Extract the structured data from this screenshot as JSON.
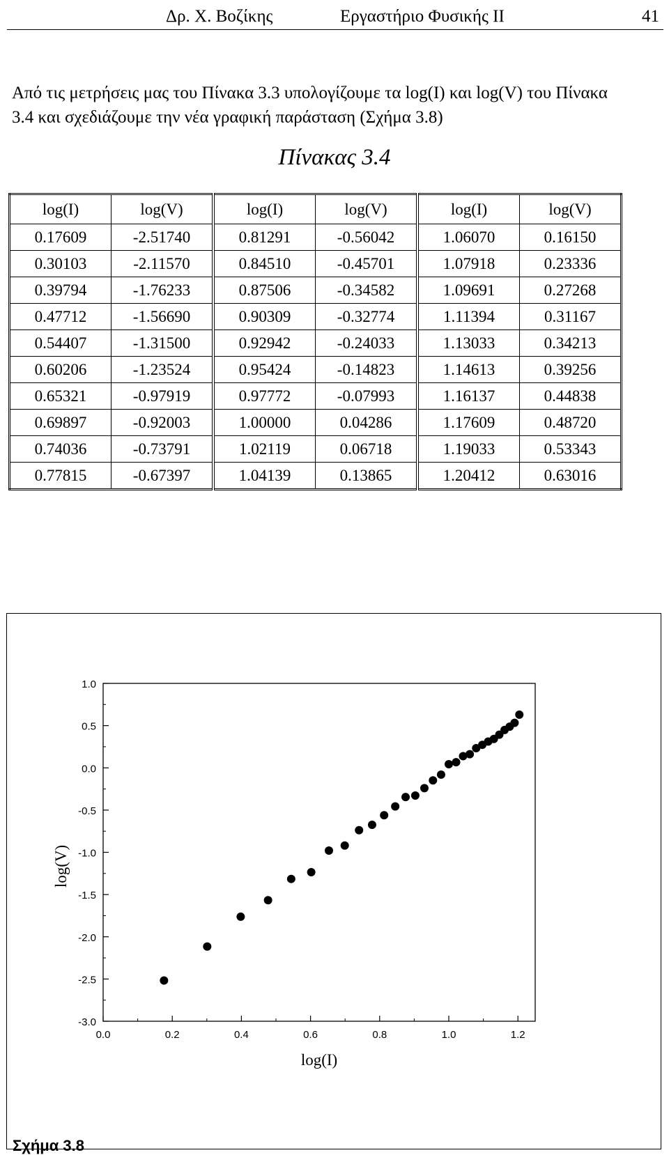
{
  "header": {
    "author": "Δρ. Χ. Βοζίκης",
    "course": "Εργαστήριο Φυσικής ΙΙ",
    "page": "41"
  },
  "intro": {
    "line1": "Από τις μετρήσεις μας του Πίνακα 3.3 υπολογίζουμε τα log(I) και log(V) του Πίνακα",
    "line2": "3.4 και σχεδιάζουμε την νέα γραφική παράσταση (Σχήμα 3.8)"
  },
  "table": {
    "title": "Πίνακας 3.4",
    "headers": [
      "log(I)",
      "log(V)",
      "log(I)",
      "log(V)",
      "log(I)",
      "log(V)"
    ],
    "rows": [
      [
        "0.17609",
        "-2.51740",
        "0.81291",
        "-0.56042",
        "1.06070",
        "0.16150"
      ],
      [
        "0.30103",
        "-2.11570",
        "0.84510",
        "-0.45701",
        "1.07918",
        "0.23336"
      ],
      [
        "0.39794",
        "-1.76233",
        "0.87506",
        "-0.34582",
        "1.09691",
        "0.27268"
      ],
      [
        "0.47712",
        "-1.56690",
        "0.90309",
        "-0.32774",
        "1.11394",
        "0.31167"
      ],
      [
        "0.54407",
        "-1.31500",
        "0.92942",
        "-0.24033",
        "1.13033",
        "0.34213"
      ],
      [
        "0.60206",
        "-1.23524",
        "0.95424",
        "-0.14823",
        "1.14613",
        "0.39256"
      ],
      [
        "0.65321",
        "-0.97919",
        "0.97772",
        "-0.07993",
        "1.16137",
        "0.44838"
      ],
      [
        "0.69897",
        "-0.92003",
        "1.00000",
        "0.04286",
        "1.17609",
        "0.48720"
      ],
      [
        "0.74036",
        "-0.73791",
        "1.02119",
        "0.06718",
        "1.19033",
        "0.53343"
      ],
      [
        "0.77815",
        "-0.67397",
        "1.04139",
        "0.13865",
        "1.20412",
        "0.63016"
      ]
    ]
  },
  "figure_label": "Σχήμα 3.8",
  "chart_data": {
    "type": "scatter",
    "xlabel": "log(I)",
    "ylabel": "log(V)",
    "xlim": [
      0.0,
      1.25
    ],
    "ylim": [
      -3.0,
      1.0
    ],
    "xticks": [
      "0.0",
      "0.2",
      "0.4",
      "0.6",
      "0.8",
      "1.0",
      "1.2"
    ],
    "yticks": [
      "1.0",
      "0.5",
      "0.0",
      "-0.5",
      "-1.0",
      "-1.5",
      "-2.0",
      "-2.5",
      "-3.0"
    ],
    "x": [
      0.17609,
      0.30103,
      0.39794,
      0.47712,
      0.54407,
      0.60206,
      0.65321,
      0.69897,
      0.74036,
      0.77815,
      0.81291,
      0.8451,
      0.87506,
      0.90309,
      0.92942,
      0.95424,
      0.97772,
      1.0,
      1.02119,
      1.04139,
      1.0607,
      1.07918,
      1.09691,
      1.11394,
      1.13033,
      1.14613,
      1.16137,
      1.17609,
      1.19033,
      1.20412
    ],
    "y": [
      -2.5174,
      -2.1157,
      -1.76233,
      -1.5669,
      -1.315,
      -1.23524,
      -0.97919,
      -0.92003,
      -0.73791,
      -0.67397,
      -0.56042,
      -0.45701,
      -0.34582,
      -0.32774,
      -0.24033,
      -0.14823,
      -0.07993,
      0.04286,
      0.06718,
      0.13865,
      0.1615,
      0.23336,
      0.27268,
      0.31167,
      0.34213,
      0.39256,
      0.44838,
      0.4872,
      0.53343,
      0.63016
    ],
    "marker_color": "#000000",
    "grid": false
  }
}
